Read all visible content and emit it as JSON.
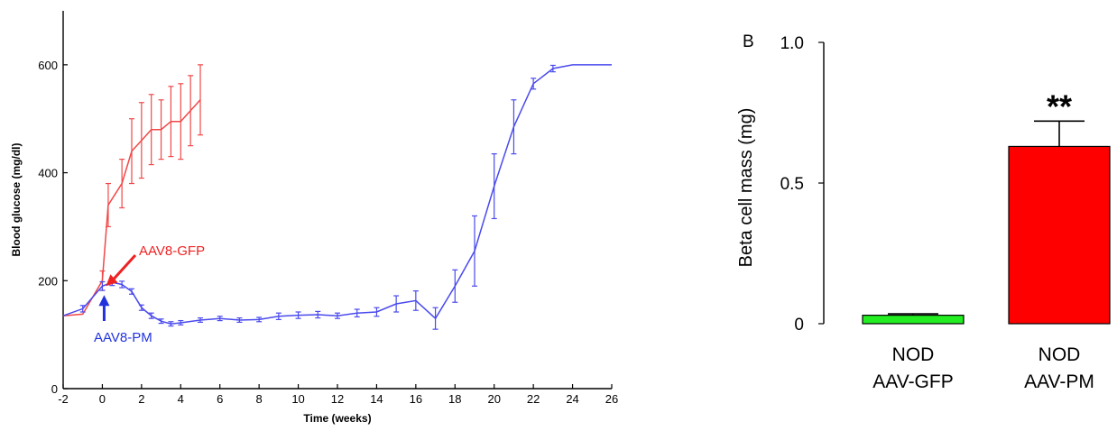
{
  "chart_data": [
    {
      "type": "line",
      "xlabel": "Time (weeks)",
      "ylabel": "Blood glucose (mg/dl)",
      "xlim": [
        -2,
        26
      ],
      "ylim": [
        0,
        700
      ],
      "xticks": [
        -2,
        0,
        2,
        4,
        6,
        8,
        10,
        12,
        14,
        16,
        18,
        20,
        22,
        24,
        26
      ],
      "yticks": [
        0,
        200,
        400,
        600
      ],
      "grid": false,
      "series": [
        {
          "color": "#f04848",
          "x": [
            -2,
            -1,
            0,
            0.3,
            1,
            1.5,
            2,
            2.5,
            3,
            3.5,
            4,
            4.5,
            5
          ],
          "y": [
            135,
            138,
            200,
            340,
            380,
            440,
            460,
            480,
            480,
            495,
            495,
            515,
            535
          ],
          "err": [
            0,
            0,
            18,
            40,
            45,
            60,
            70,
            65,
            55,
            65,
            70,
            65,
            65
          ]
        },
        {
          "color": "#4a4aee",
          "x": [
            -2,
            -1,
            0,
            0.5,
            1,
            1.5,
            2,
            2.5,
            3,
            3.5,
            4,
            5,
            6,
            7,
            8,
            9,
            10,
            11,
            12,
            13,
            14,
            15,
            16,
            17,
            18,
            19,
            20,
            21,
            22,
            23,
            24,
            25,
            26
          ],
          "y": [
            135,
            148,
            190,
            197,
            193,
            180,
            150,
            135,
            125,
            120,
            122,
            127,
            130,
            127,
            128,
            134,
            136,
            137,
            135,
            140,
            142,
            157,
            163,
            130,
            190,
            255,
            375,
            485,
            565,
            593,
            600,
            600,
            600
          ],
          "err": [
            0,
            6,
            8,
            6,
            6,
            5,
            5,
            5,
            4,
            4,
            4,
            4,
            4,
            4,
            4,
            6,
            6,
            6,
            5,
            7,
            8,
            15,
            18,
            20,
            30,
            65,
            60,
            50,
            10,
            6,
            0,
            0,
            0
          ]
        }
      ],
      "annotations": [
        {
          "text": "AAV8-GFP",
          "color": "#ee2222",
          "x": 0,
          "y": 200
        },
        {
          "text": "AAV8-PM",
          "color": "#2233dd",
          "x": 0,
          "y": 190
        }
      ]
    },
    {
      "type": "bar",
      "panel_label": "B",
      "ylabel": "Beta cell mass (mg)",
      "ylim": [
        0,
        1.0
      ],
      "yticks": [
        0,
        0.5,
        1.0
      ],
      "ytick_labels": [
        "0",
        "0.5",
        "1.0"
      ],
      "categories": [
        {
          "line1": "NOD",
          "line2": "AAV-GFP"
        },
        {
          "line1": "NOD",
          "line2": "AAV-PM"
        }
      ],
      "values": [
        0.03,
        0.63
      ],
      "errors": [
        0.005,
        0.09
      ],
      "colors": [
        "#22ee22",
        "#ff0000"
      ],
      "significance": [
        {
          "category_index": 1,
          "text": "**"
        }
      ]
    }
  ]
}
